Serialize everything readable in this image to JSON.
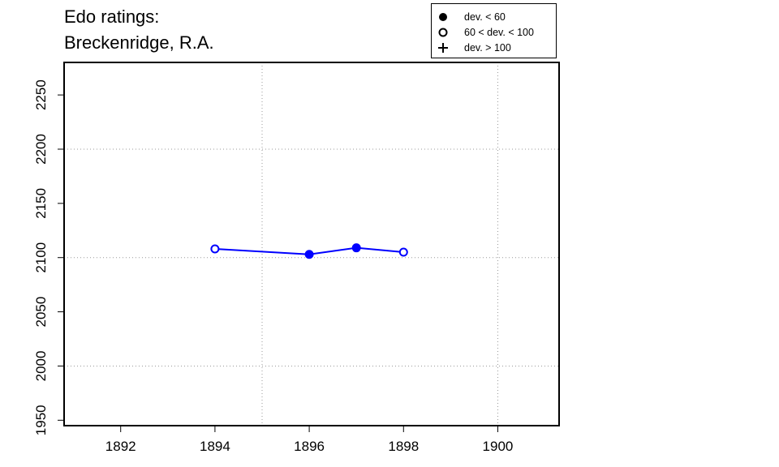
{
  "title_lines": [
    "Edo ratings:",
    "Breckenridge, R.A."
  ],
  "legend": [
    {
      "symbol": "filled-circle",
      "label": "dev. < 60"
    },
    {
      "symbol": "open-circle",
      "label": "60 < dev. < 100"
    },
    {
      "symbol": "plus",
      "label": "dev. > 100"
    }
  ],
  "colors": {
    "series": "#0000ff",
    "grid": "#999999",
    "axis": "#000000"
  },
  "chart_data": {
    "type": "line",
    "title": "Edo ratings: Breckenridge, R.A.",
    "xlabel": "",
    "ylabel": "",
    "xlim": [
      1890.8,
      1901.3
    ],
    "ylim": [
      1945,
      2280
    ],
    "x_ticks": [
      1892,
      1894,
      1896,
      1898,
      1900
    ],
    "y_ticks": [
      1950,
      2000,
      2050,
      2100,
      2150,
      2200,
      2250
    ],
    "x_grid": [
      1895,
      1900
    ],
    "y_grid": [
      2000,
      2100,
      2200
    ],
    "grid": true,
    "legend_position": "top-right",
    "series": [
      {
        "points": [
          {
            "x": 1894,
            "y": 2108,
            "marker": "open-circle"
          },
          {
            "x": 1896,
            "y": 2103,
            "marker": "filled-circle"
          },
          {
            "x": 1897,
            "y": 2109,
            "marker": "filled-circle"
          },
          {
            "x": 1898,
            "y": 2105,
            "marker": "open-circle"
          }
        ]
      }
    ]
  }
}
